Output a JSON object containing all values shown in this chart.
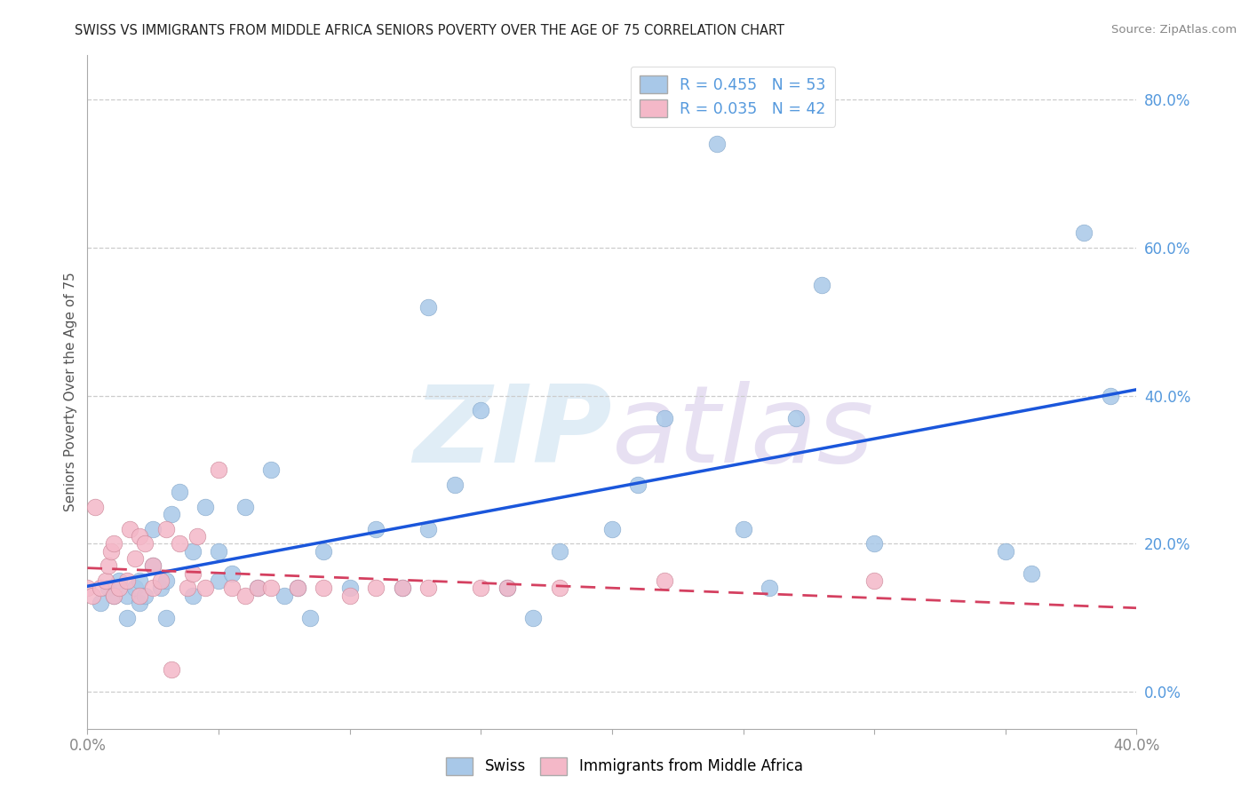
{
  "title": "SWISS VS IMMIGRANTS FROM MIDDLE AFRICA SENIORS POVERTY OVER THE AGE OF 75 CORRELATION CHART",
  "source": "Source: ZipAtlas.com",
  "ylabel": "Seniors Poverty Over the Age of 75",
  "watermark_zip": "ZIP",
  "watermark_atlas": "atlas",
  "xlim": [
    0.0,
    0.4
  ],
  "ylim": [
    -0.05,
    0.86
  ],
  "xticks": [
    0.0,
    0.05,
    0.1,
    0.15,
    0.2,
    0.25,
    0.3,
    0.35,
    0.4
  ],
  "yticks": [
    0.0,
    0.2,
    0.4,
    0.6,
    0.8
  ],
  "ytick_labels": [
    "0.0%",
    "20.0%",
    "40.0%",
    "60.0%",
    "80.0%"
  ],
  "xtick_labels": [
    "0.0%",
    "",
    "",
    "",
    "",
    "",
    "",
    "",
    "40.0%"
  ],
  "legend_swiss_label": "R = 0.455   N = 53",
  "legend_immig_label": "R = 0.035   N = 42",
  "swiss_color": "#a8c8e8",
  "immig_color": "#f4b8c8",
  "swiss_line_color": "#1a56db",
  "immig_line_color": "#d44060",
  "tick_color": "#5599dd",
  "grid_color": "#cccccc",
  "background_color": "#ffffff",
  "swiss_x": [
    0.005,
    0.008,
    0.01,
    0.012,
    0.015,
    0.015,
    0.018,
    0.02,
    0.02,
    0.022,
    0.025,
    0.025,
    0.028,
    0.03,
    0.03,
    0.032,
    0.035,
    0.04,
    0.04,
    0.045,
    0.05,
    0.05,
    0.055,
    0.06,
    0.065,
    0.07,
    0.075,
    0.08,
    0.085,
    0.09,
    0.1,
    0.11,
    0.12,
    0.13,
    0.13,
    0.14,
    0.15,
    0.16,
    0.17,
    0.18,
    0.2,
    0.21,
    0.22,
    0.24,
    0.25,
    0.26,
    0.27,
    0.28,
    0.3,
    0.35,
    0.36,
    0.38,
    0.39
  ],
  "swiss_y": [
    0.12,
    0.14,
    0.13,
    0.15,
    0.13,
    0.1,
    0.14,
    0.12,
    0.15,
    0.13,
    0.17,
    0.22,
    0.14,
    0.1,
    0.15,
    0.24,
    0.27,
    0.13,
    0.19,
    0.25,
    0.15,
    0.19,
    0.16,
    0.25,
    0.14,
    0.3,
    0.13,
    0.14,
    0.1,
    0.19,
    0.14,
    0.22,
    0.14,
    0.22,
    0.52,
    0.28,
    0.38,
    0.14,
    0.1,
    0.19,
    0.22,
    0.28,
    0.37,
    0.74,
    0.22,
    0.14,
    0.37,
    0.55,
    0.2,
    0.19,
    0.16,
    0.62,
    0.4
  ],
  "immig_x": [
    0.0,
    0.002,
    0.003,
    0.005,
    0.007,
    0.008,
    0.009,
    0.01,
    0.01,
    0.012,
    0.015,
    0.016,
    0.018,
    0.02,
    0.02,
    0.022,
    0.025,
    0.025,
    0.028,
    0.03,
    0.032,
    0.035,
    0.038,
    0.04,
    0.042,
    0.045,
    0.05,
    0.055,
    0.06,
    0.065,
    0.07,
    0.08,
    0.09,
    0.1,
    0.11,
    0.12,
    0.13,
    0.15,
    0.16,
    0.18,
    0.22,
    0.3
  ],
  "immig_y": [
    0.14,
    0.13,
    0.25,
    0.14,
    0.15,
    0.17,
    0.19,
    0.13,
    0.2,
    0.14,
    0.15,
    0.22,
    0.18,
    0.21,
    0.13,
    0.2,
    0.14,
    0.17,
    0.15,
    0.22,
    0.03,
    0.2,
    0.14,
    0.16,
    0.21,
    0.14,
    0.3,
    0.14,
    0.13,
    0.14,
    0.14,
    0.14,
    0.14,
    0.13,
    0.14,
    0.14,
    0.14,
    0.14,
    0.14,
    0.14,
    0.15,
    0.15
  ]
}
